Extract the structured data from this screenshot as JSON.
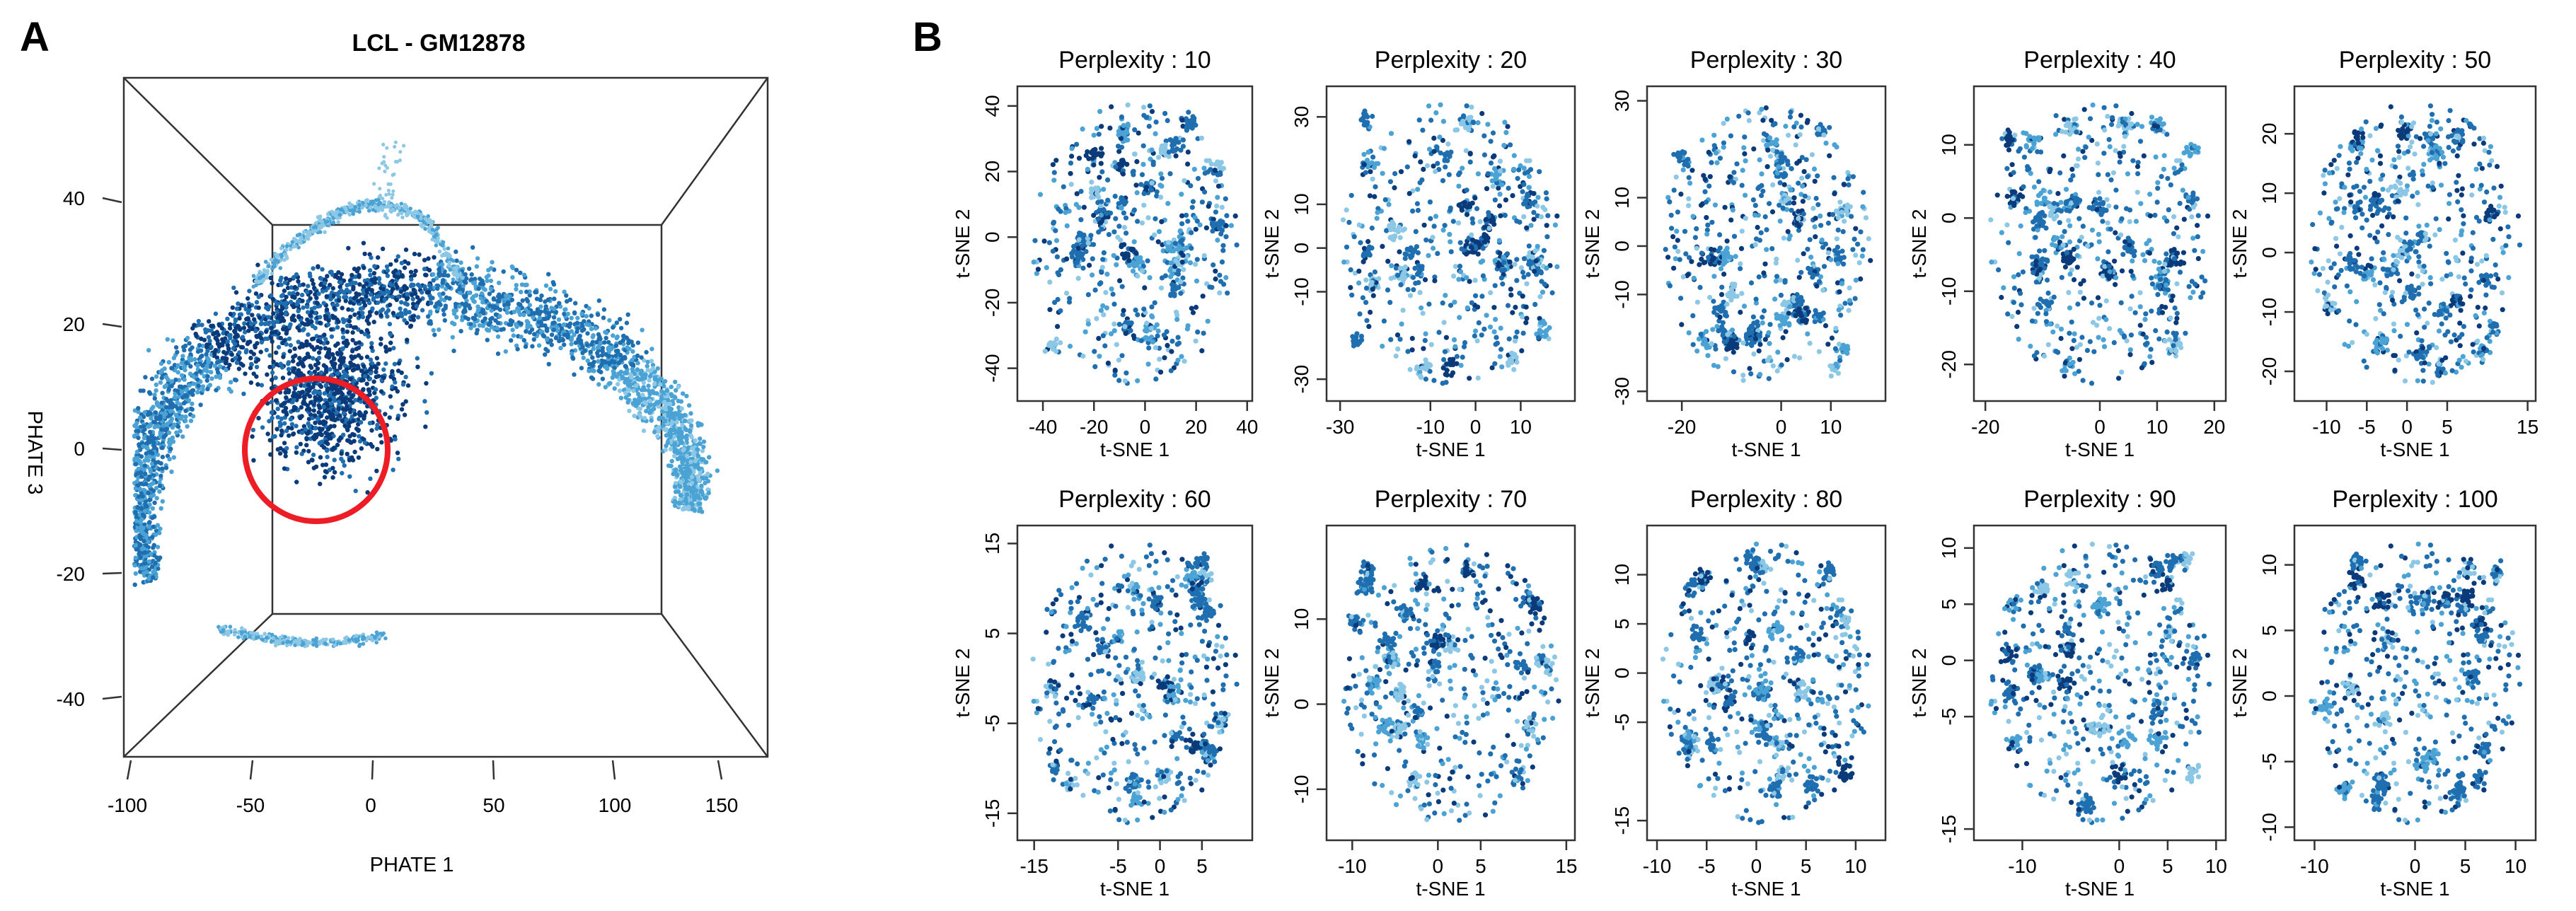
{
  "figure": {
    "panel_a_label": "A",
    "panel_b_label": "B"
  },
  "colors": {
    "dark": "#0a3a7a",
    "mid": "#1f6fb0",
    "light": "#4aa3d4",
    "pale": "#8cc8e6",
    "highlight": "#ee1c25"
  },
  "chart_data": [
    {
      "type": "scatter",
      "title": "LCL - GM12878",
      "xlabel": "PHATE 1",
      "ylabel": "PHATE 3",
      "xlim": [
        -100,
        150
      ],
      "ylim": [
        -40,
        40
      ],
      "xticks": [
        "-100",
        "-50",
        "0",
        "50",
        "100",
        "150"
      ],
      "yticks": [
        "40",
        "20",
        "0",
        "-20",
        "-40"
      ],
      "structure": "crescent-shaped manifold colored by pseudotime, dark blue core transitioning to light blue tails",
      "highlight_circle": {
        "x": -20,
        "y": 0,
        "radius": 25,
        "color": "#ee1c25"
      }
    },
    {
      "type": "scatter",
      "title": "Perplexity : 10",
      "xlabel": "t-SNE 1",
      "ylabel": "t-SNE 2",
      "xlim": [
        -50,
        42
      ],
      "ylim": [
        -50,
        46
      ],
      "xticks": [
        "-40",
        "-20",
        "0",
        "20",
        "40"
      ],
      "xtick_values": [
        -40,
        -20,
        0,
        20,
        40
      ],
      "yticks": [
        "40",
        "20",
        "0",
        "-20",
        "-40"
      ],
      "ytick_values": [
        40,
        20,
        0,
        -20,
        -40
      ]
    },
    {
      "type": "scatter",
      "title": "Perplexity : 20",
      "xlabel": "t-SNE 1",
      "ylabel": "t-SNE 2",
      "xlim": [
        -33,
        22
      ],
      "ylim": [
        -35,
        37
      ],
      "xticks": [
        "-30",
        "-10",
        "0",
        "10"
      ],
      "xtick_values": [
        -30,
        -10,
        0,
        10
      ],
      "yticks": [
        "30",
        "10",
        "0",
        "-10",
        "-30"
      ],
      "ytick_values": [
        30,
        10,
        0,
        -10,
        -30
      ]
    },
    {
      "type": "scatter",
      "title": "Perplexity : 30",
      "xlabel": "t-SNE 1",
      "ylabel": "t-SNE 2",
      "xlim": [
        -27,
        21
      ],
      "ylim": [
        -32,
        33
      ],
      "xticks": [
        "-20",
        "0",
        "10"
      ],
      "xtick_values": [
        -20,
        0,
        10
      ],
      "yticks": [
        "30",
        "10",
        "0",
        "-10",
        "-30"
      ],
      "ytick_values": [
        30,
        10,
        0,
        -10,
        -30
      ]
    },
    {
      "type": "scatter",
      "title": "Perplexity : 40",
      "xlabel": "t-SNE 1",
      "ylabel": "t-SNE 2",
      "xlim": [
        -22,
        22
      ],
      "ylim": [
        -25,
        18
      ],
      "xticks": [
        "-20",
        "0",
        "10",
        "20"
      ],
      "xtick_values": [
        -20,
        0,
        10,
        20
      ],
      "yticks": [
        "10",
        "0",
        "-10",
        "-20"
      ],
      "ytick_values": [
        10,
        0,
        -10,
        -20
      ]
    },
    {
      "type": "scatter",
      "title": "Perplexity : 50",
      "xlabel": "t-SNE 1",
      "ylabel": "t-SNE 2",
      "xlim": [
        -14,
        16
      ],
      "ylim": [
        -25,
        28
      ],
      "xticks": [
        "-10",
        "-5",
        "0",
        "5",
        "15"
      ],
      "xtick_values": [
        -10,
        -5,
        0,
        5,
        15
      ],
      "yticks": [
        "20",
        "10",
        "0",
        "-10",
        "-20"
      ],
      "ytick_values": [
        20,
        10,
        0,
        -10,
        -20
      ]
    },
    {
      "type": "scatter",
      "title": "Perplexity : 60",
      "xlabel": "t-SNE 1",
      "ylabel": "t-SNE 2",
      "xlim": [
        -17,
        11
      ],
      "ylim": [
        -18,
        17
      ],
      "xticks": [
        "-15",
        "-5",
        "0",
        "5"
      ],
      "xtick_values": [
        -15,
        -5,
        0,
        5
      ],
      "yticks": [
        "15",
        "5",
        "-5",
        "-15"
      ],
      "ytick_values": [
        15,
        5,
        -5,
        -15
      ]
    },
    {
      "type": "scatter",
      "title": "Perplexity : 70",
      "xlabel": "t-SNE 1",
      "ylabel": "t-SNE 2",
      "xlim": [
        -13,
        16
      ],
      "ylim": [
        -16,
        21
      ],
      "xticks": [
        "-10",
        "0",
        "5",
        "15"
      ],
      "xtick_values": [
        -10,
        0,
        5,
        15
      ],
      "yticks": [
        "10",
        "0",
        "-10"
      ],
      "ytick_values": [
        10,
        0,
        -10
      ]
    },
    {
      "type": "scatter",
      "title": "Perplexity : 80",
      "xlabel": "t-SNE 1",
      "ylabel": "t-SNE 2",
      "xlim": [
        -11,
        13
      ],
      "ylim": [
        -17,
        15
      ],
      "xticks": [
        "-10",
        "-5",
        "0",
        "5",
        "10"
      ],
      "xtick_values": [
        -10,
        -5,
        0,
        5,
        10
      ],
      "yticks": [
        "10",
        "5",
        "0",
        "-5",
        "-15"
      ],
      "ytick_values": [
        10,
        5,
        0,
        -5,
        -15
      ]
    },
    {
      "type": "scatter",
      "title": "Perplexity : 90",
      "xlabel": "t-SNE 1",
      "ylabel": "t-SNE 2",
      "xlim": [
        -15,
        11
      ],
      "ylim": [
        -16,
        12
      ],
      "xticks": [
        "-10",
        "0",
        "5",
        "10"
      ],
      "xtick_values": [
        -10,
        0,
        5,
        10
      ],
      "yticks": [
        "10",
        "5",
        "0",
        "-5",
        "-15"
      ],
      "ytick_values": [
        10,
        5,
        0,
        -5,
        -15
      ]
    },
    {
      "type": "scatter",
      "title": "Perplexity : 100",
      "xlabel": "t-SNE 1",
      "ylabel": "t-SNE 2",
      "xlim": [
        -12,
        12
      ],
      "ylim": [
        -11,
        13
      ],
      "xticks": [
        "-10",
        "0",
        "5",
        "10"
      ],
      "xtick_values": [
        -10,
        0,
        5,
        10
      ],
      "yticks": [
        "10",
        "5",
        "0",
        "-5",
        "-10"
      ],
      "ytick_values": [
        10,
        5,
        0,
        -5,
        -10
      ]
    }
  ]
}
